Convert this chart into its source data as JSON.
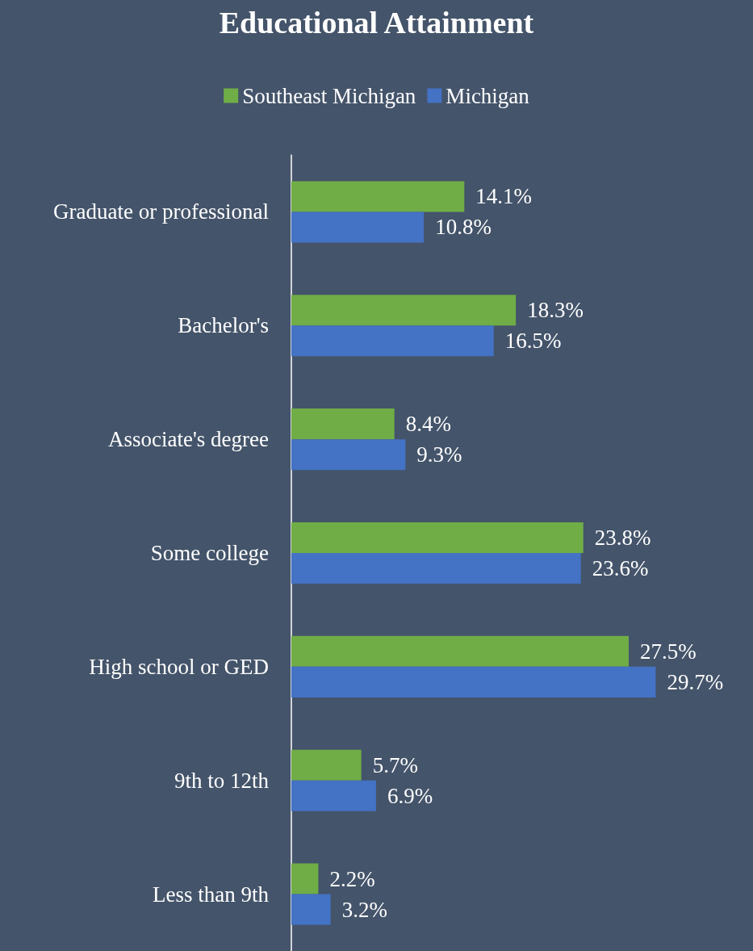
{
  "chart_data": {
    "type": "bar",
    "orientation": "horizontal",
    "title": "Educational Attainment",
    "categories": [
      "Graduate or professional",
      "Bachelor's",
      "Associate's degree",
      "Some college",
      "High school or GED",
      "9th to 12th",
      "Less than 9th"
    ],
    "series": [
      {
        "name": "Southeast Michigan",
        "color": "#70ad47",
        "values": [
          14.1,
          18.3,
          8.4,
          23.8,
          27.5,
          5.7,
          2.2
        ],
        "value_labels": [
          "14.1%",
          "18.3%",
          "8.4%",
          "23.8%",
          "27.5%",
          "5.7%",
          "2.2%"
        ]
      },
      {
        "name": "Michigan",
        "color": "#4472c4",
        "values": [
          10.8,
          16.5,
          9.3,
          23.6,
          29.7,
          6.9,
          3.2
        ],
        "value_labels": [
          "10.8%",
          "16.5%",
          "9.3%",
          "23.6%",
          "29.7%",
          "6.9%",
          "3.2%"
        ]
      }
    ],
    "legend": "top",
    "tick_labels": "y"
  }
}
